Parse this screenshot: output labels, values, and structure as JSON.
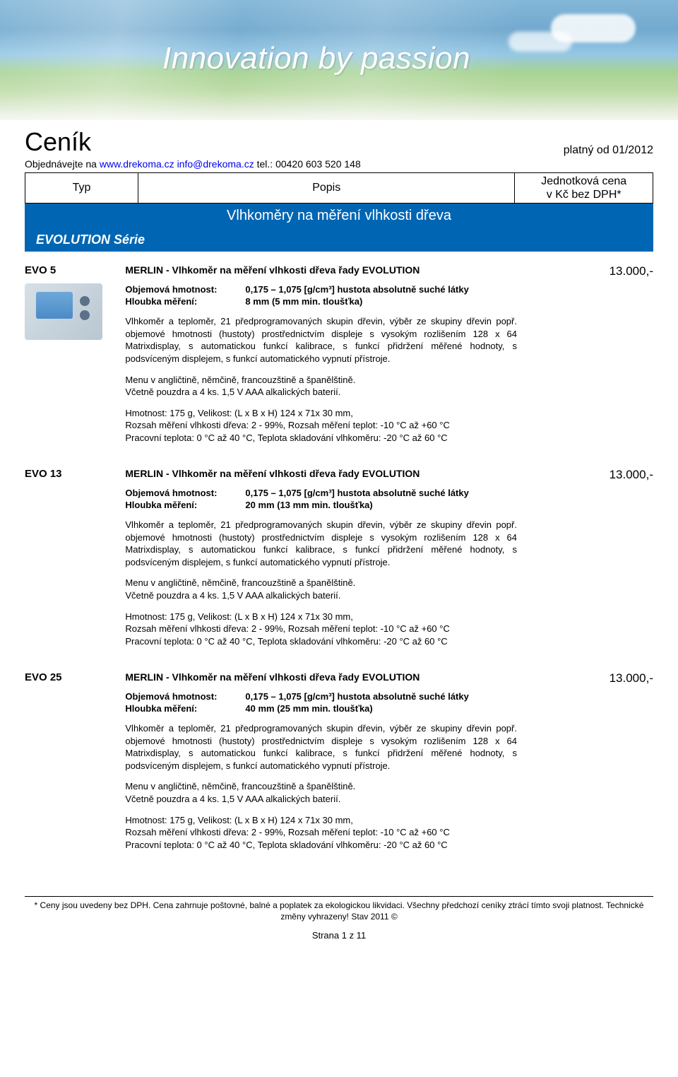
{
  "banner": {
    "tagline": "Innovation by passion",
    "bg_gradient": [
      "#7db3d6",
      "#6ba5cc",
      "#8fc4e3",
      "#a3d18f",
      "#b8d89f",
      "#f5f5f0"
    ],
    "text_color": "#ffffff"
  },
  "header": {
    "title": "Ceník",
    "valid_from": "platný od 01/2012",
    "order_prefix": "Objednávejte na ",
    "order_site": "www.drekoma.cz",
    "order_email": "info@drekoma.cz",
    "order_tel": " tel.: 00420 603 520 148",
    "cols": {
      "typ": "Typ",
      "popis": "Popis",
      "cena_l1": "Jednotková cena",
      "cena_l2": "v Kč bez DPH*"
    }
  },
  "section_title": "Vlhkoměry na měření vlhkosti dřeva",
  "series_label": "EVOLUTION   Série",
  "spec_labels": {
    "density": "Objemová hmotnost:",
    "depth": "Hloubka měření:"
  },
  "common": {
    "desc1": "Vlhkoměr a teploměr, 21 předprogramovaných skupin dřevin, výběr ze skupiny dřevin popř. objemové hmotnosti (hustoty) prostřednictvím displeje s vysokým rozlišením 128 x 64 Matrixdisplay, s automatickou funkcí kalibrace, s funkcí přidržení měřené hodnoty, s podsvíceným displejem, s funkcí automatického vypnutí přístroje.",
    "desc2": "Menu v angličtině, němčině, francouzštině a španělštině.\nVčetně pouzdra a 4 ks. 1,5 V  AAA alkalických baterií.",
    "desc3": "Hmotnost: 175 g, Velikost: (L x B x H)  124 x 71x 30 mm,\nRozsah měření vlhkosti dřeva: 2 - 99%, Rozsah měření teplot: -10 °C až +60 °C\nPracovní teplota: 0 °C až 40 °C, Teplota skladování vlhkoměru: -20 °C až 60 °C",
    "density_val": "0,175 – 1,075 [g/cm³] hustota absolutně suché látky"
  },
  "products": [
    {
      "code": "EVO 5",
      "title": "MERLIN  -  Vlhkoměr na měření vlhkosti dřeva řady   EVOLUTION",
      "depth": "8 mm (5 mm min. tloušťka)",
      "price": "13.000,-",
      "has_image": true
    },
    {
      "code": "EVO 13",
      "title": "MERLIN  -  Vlhkoměr na měření vlhkosti dřeva řady   EVOLUTION",
      "depth": "20 mm (13 mm min. tloušťka)",
      "price": "13.000,-",
      "has_image": false
    },
    {
      "code": "EVO 25",
      "title": "MERLIN  -  Vlhkoměr na měření vlhkosti dřeva řady   EVOLUTION",
      "depth": "40 mm (25 mm min. tloušťka)",
      "price": "13.000,-",
      "has_image": false
    }
  ],
  "footer": {
    "line1": "* Ceny jsou uvedeny bez DPH. Cena zahrnuje poštovné, balné a poplatek za ekologickou likvidaci. Všechny předchozí ceníky ztrácí tímto svoji platnost. Technické změny vyhrazeny! Stav  2011 ©",
    "page": "Strana 1 z 11"
  },
  "colors": {
    "brand_blue": "#0066b3",
    "link_blue": "#0000ee",
    "text": "#000000",
    "bg": "#ffffff"
  }
}
